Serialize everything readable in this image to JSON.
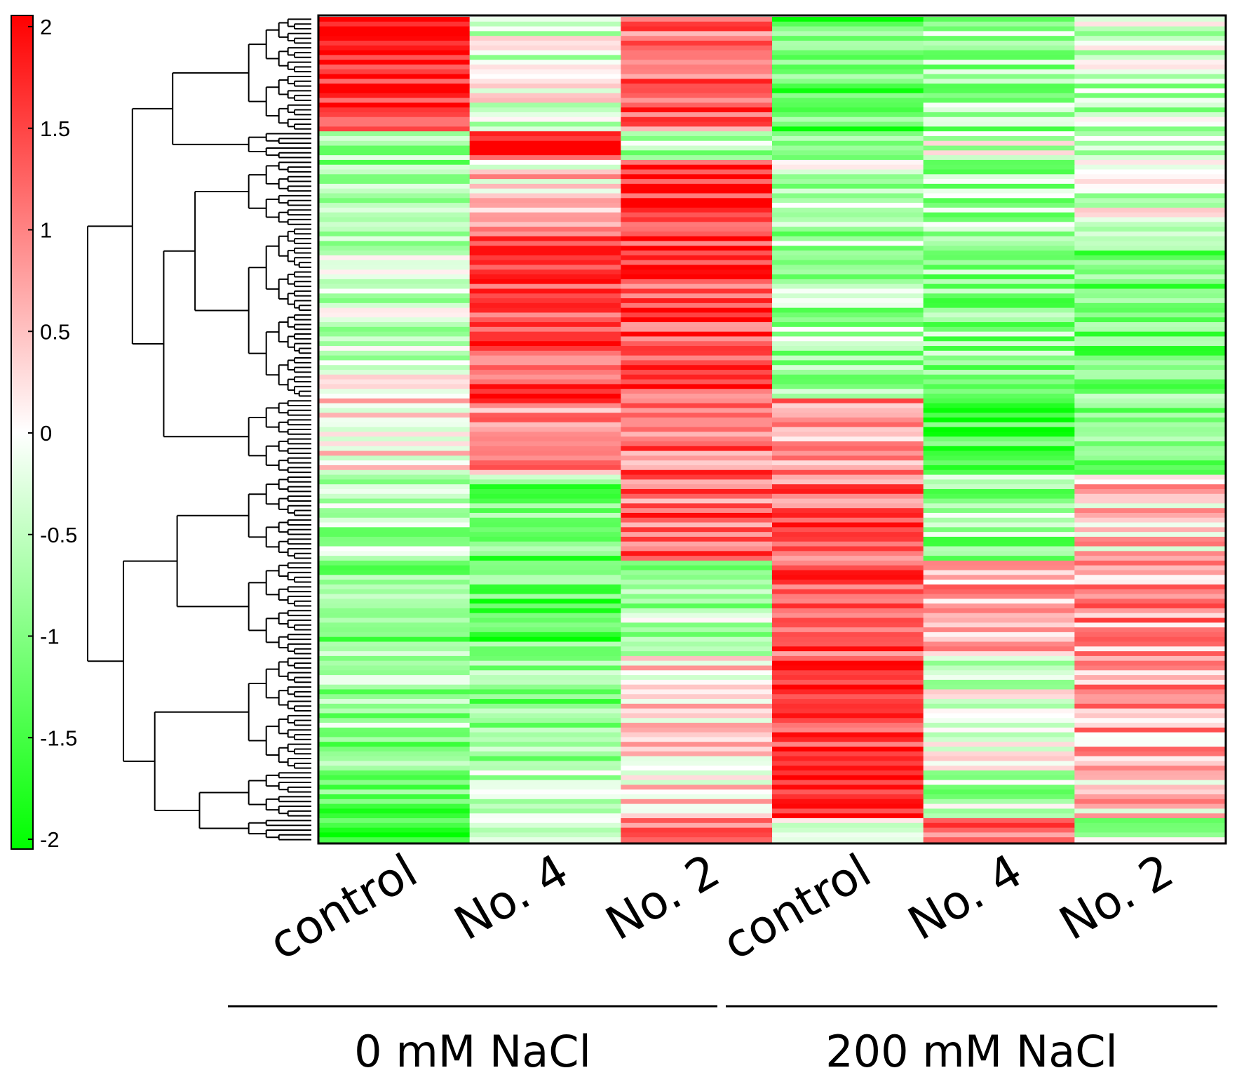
{
  "chart_data": {
    "type": "heatmap",
    "title": "",
    "row_dendrogram": true,
    "colorscale": {
      "low_color": "#00ff00",
      "mid_color": "#ffffff",
      "high_color": "#ff0000",
      "min": -2,
      "max": 2,
      "ticks": [
        2,
        1.5,
        1,
        0.5,
        0,
        -0.5,
        -1,
        -1.5,
        -2
      ],
      "tick_labels": [
        "2",
        "1.5",
        "1",
        "0.5",
        "0",
        "-0.5",
        "-1",
        "-1.5",
        "-2"
      ]
    },
    "columns": [
      "control",
      "No. 4",
      "No. 2",
      "control",
      "No. 4",
      "No. 2"
    ],
    "groups": [
      {
        "label": "0 mM NaCl",
        "columns": [
          0,
          1,
          2
        ]
      },
      {
        "label": "200 mM NaCl",
        "columns": [
          3,
          4,
          5
        ]
      }
    ],
    "row_clusters": [
      {
        "rows": 24,
        "values": [
          1.8,
          -0.2,
          1.2,
          -1.3,
          -0.8,
          -0.5
        ]
      },
      {
        "rows": 6,
        "values": [
          -0.6,
          1.9,
          -0.7,
          -0.6,
          -0.3,
          -0.5
        ]
      },
      {
        "rows": 14,
        "values": [
          -0.9,
          0.3,
          1.7,
          -0.5,
          -0.7,
          -0.3
        ]
      },
      {
        "rows": 36,
        "values": [
          -0.3,
          1.4,
          1.5,
          -0.7,
          -0.9,
          -1.0
        ]
      },
      {
        "rows": 16,
        "values": [
          0.2,
          1.0,
          1.1,
          0.8,
          -1.4,
          -0.9
        ]
      },
      {
        "rows": 18,
        "values": [
          -0.6,
          -1.1,
          1.2,
          1.2,
          -0.8,
          0.4
        ]
      },
      {
        "rows": 20,
        "values": [
          -1.0,
          -1.3,
          -0.6,
          1.2,
          0.6,
          0.8
        ]
      },
      {
        "rows": 24,
        "values": [
          -0.8,
          -0.9,
          0.2,
          1.5,
          -0.2,
          0.7
        ]
      },
      {
        "rows": 10,
        "values": [
          -1.1,
          -0.7,
          0.3,
          1.8,
          -0.6,
          0.4
        ]
      },
      {
        "rows": 5,
        "values": [
          -1.8,
          0.1,
          0.9,
          -0.5,
          1.4,
          -0.6
        ]
      }
    ]
  }
}
